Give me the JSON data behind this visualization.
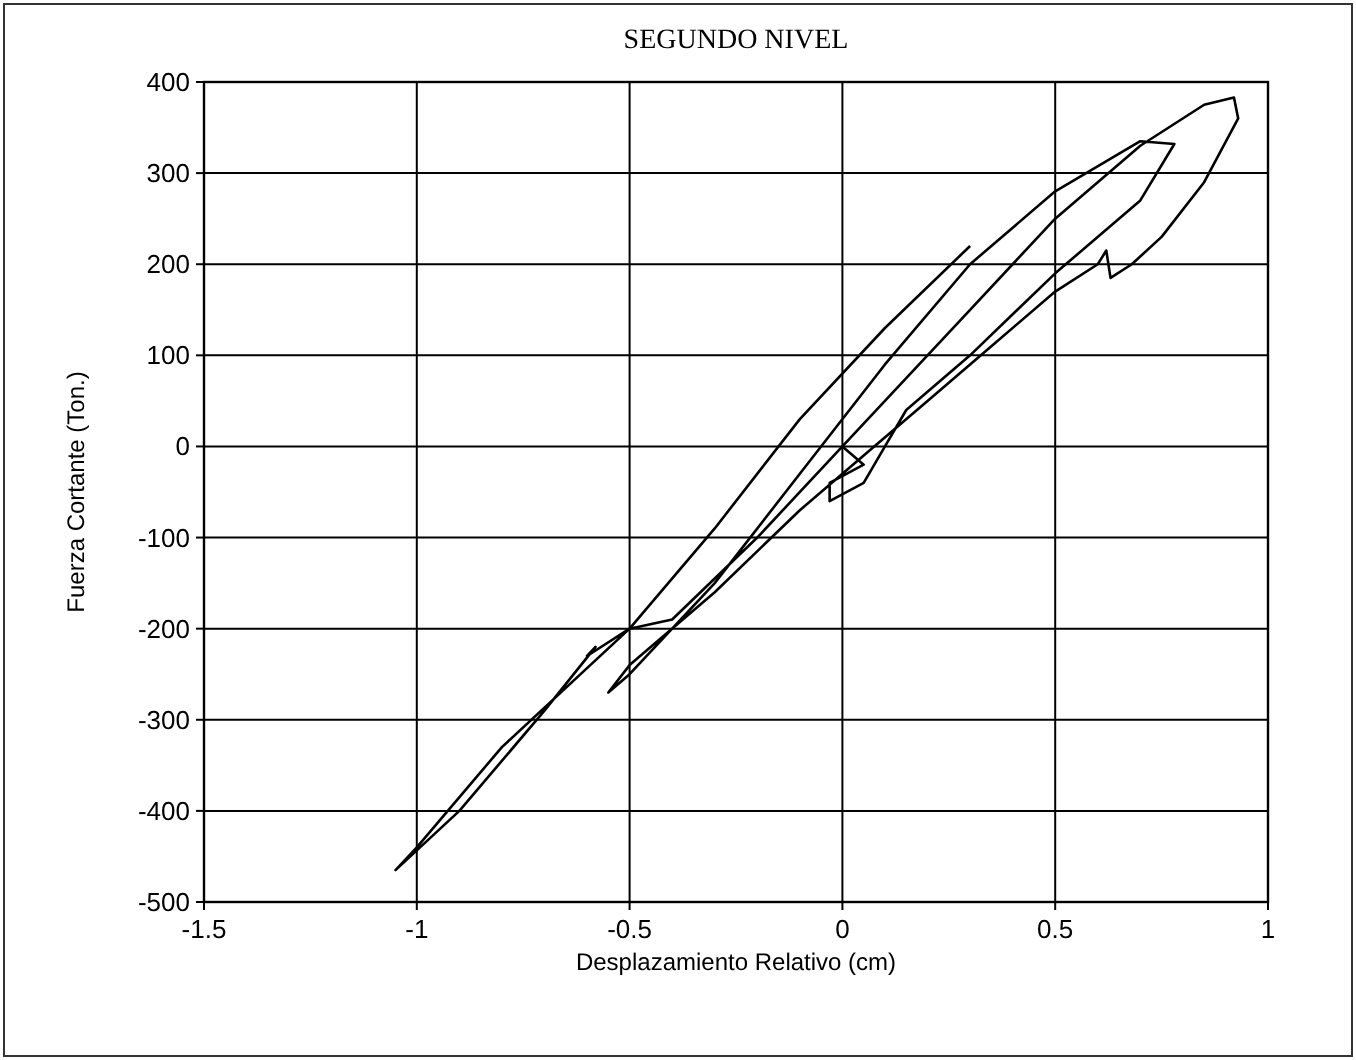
{
  "chart_data": {
    "type": "line",
    "title": "SEGUNDO NIVEL",
    "xlabel": "Desplazamiento Relativo (cm)",
    "ylabel": "Fuerza Cortante (Ton.)",
    "xlim": [
      -1.5,
      1
    ],
    "xticks": [
      -1.5,
      -1,
      -0.5,
      0,
      0.5,
      1
    ],
    "ylim": [
      -500,
      400
    ],
    "yticks": [
      -500,
      -400,
      -300,
      -200,
      -100,
      0,
      100,
      200,
      300,
      400
    ],
    "grid": true,
    "series": [
      {
        "color": "#000000",
        "x": [
          0,
          0.1,
          0.3,
          0.5,
          0.7,
          0.85,
          0.92,
          0.93,
          0.85,
          0.75,
          0.68,
          0.63,
          0.62,
          0.6,
          0.5,
          0.35,
          0.2,
          0.05,
          -0.1,
          -0.3,
          -0.5,
          -0.55,
          -0.5,
          -0.3,
          -0.1,
          0.1,
          0.3,
          0.5,
          0.7,
          0.78,
          0.7,
          0.5,
          0.3,
          0.15,
          0.1,
          0.05,
          -0.03,
          -0.03,
          0.05,
          0,
          -0.2,
          -0.4,
          -0.5,
          -0.6,
          -0.58,
          -0.7,
          -0.9,
          -1.05,
          -1,
          -0.8,
          -0.5,
          -0.3,
          -0.1,
          0.1,
          0.3
        ],
        "values": [
          0,
          50,
          150,
          250,
          330,
          375,
          383,
          360,
          290,
          230,
          200,
          185,
          215,
          200,
          170,
          110,
          50,
          -10,
          -70,
          -160,
          -240,
          -270,
          -250,
          -150,
          -30,
          90,
          200,
          280,
          335,
          332,
          270,
          190,
          100,
          40,
          0,
          -40,
          -60,
          -40,
          -20,
          0,
          -100,
          -190,
          -200,
          -230,
          -220,
          -290,
          -400,
          -465,
          -440,
          -330,
          -200,
          -90,
          30,
          130,
          220
        ]
      }
    ]
  }
}
